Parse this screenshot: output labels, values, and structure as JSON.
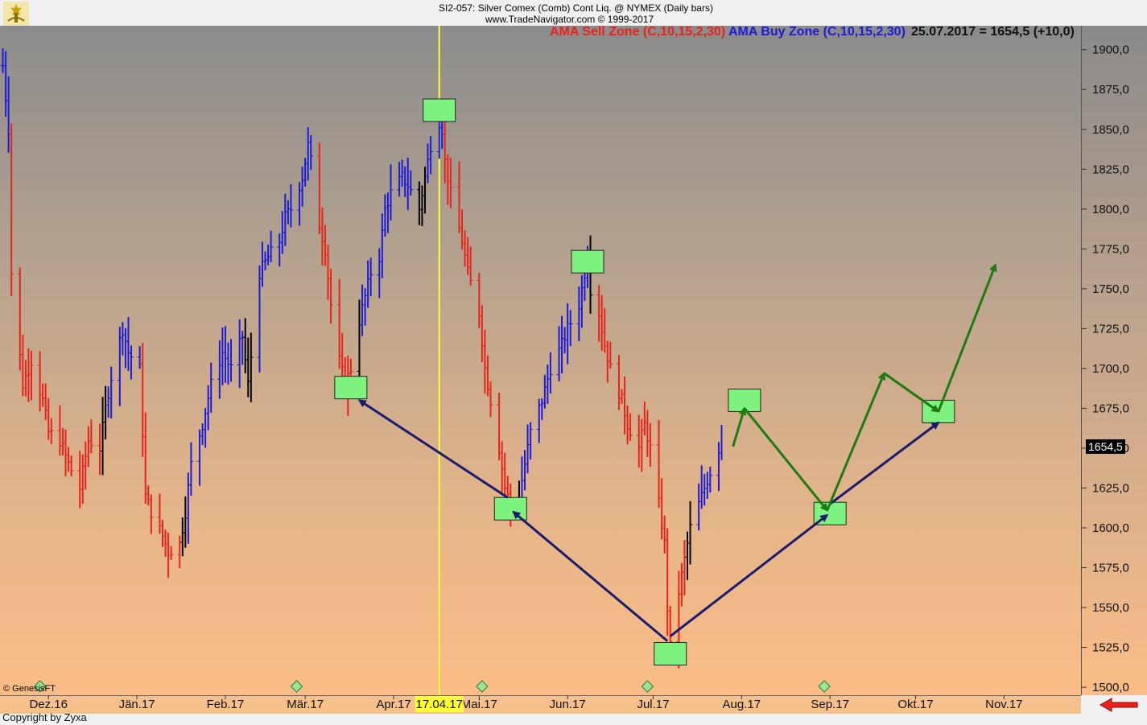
{
  "header": {
    "title": "SI2-057:  Silver Comex (Comb) Cont Liq. @ NYMEX  (Daily bars)",
    "source": "www.TradeNavigator.com © 1999-2017"
  },
  "legend": {
    "sell_zone": "AMA Sell Zone (C,10,15,2,30)",
    "buy_zone": "AMA Buy Zone (C,10,15,2,30)",
    "last_value": "25.07.2017 = 1654,5 (+10,0)"
  },
  "colors": {
    "sell": "#e8231a",
    "buy": "#1c1cd8",
    "neutral": "#000000",
    "box": "#7ef27e",
    "projection": "#1f7a12",
    "cycle": "#1a1a6e",
    "vline": "#ffff33"
  },
  "footer": {
    "copyright": "Copyright by Zyxa",
    "genesis": "© GenesisFT"
  },
  "last_price_tag": "1654,5",
  "highlight_date": "17.04.17",
  "chart_data": {
    "type": "bar",
    "title": "SI2-057:  Silver Comex (Comb) Cont Liq. @ NYMEX  (Daily bars)",
    "y_unit": "price",
    "ylim": [
      1495,
      1915
    ],
    "yticks": [
      "1900,0",
      "1875,0",
      "1850,0",
      "1825,0",
      "1800,0",
      "1775,0",
      "1750,0",
      "1725,0",
      "1700,0",
      "1675,0",
      "1650,0",
      "1625,0",
      "1600,0",
      "1575,0",
      "1550,0",
      "1525,0",
      "1500,0"
    ],
    "ytick_values": [
      1900,
      1875,
      1850,
      1825,
      1800,
      1775,
      1750,
      1725,
      1700,
      1675,
      1650,
      1625,
      1600,
      1575,
      1550,
      1525,
      1500
    ],
    "xticks": [
      "Dez.16",
      "Jän.17",
      "Feb.17",
      "Mär.17",
      "Apr.17",
      "Mai.17",
      "Jun.17",
      "Jul.17",
      "Aug.17",
      "Sep.17",
      "Okt.17",
      "Nov.17"
    ],
    "xtick_dates": [
      "2016-12-01",
      "2017-01-01",
      "2017-02-01",
      "2017-03-01",
      "2017-04-01",
      "2017-05-01",
      "2017-06-01",
      "2017-07-01",
      "2017-08-01",
      "2017-09-01",
      "2017-10-01",
      "2017-11-01"
    ],
    "x_range": [
      "2016-11-14",
      "2017-11-28"
    ],
    "grid": false,
    "series": [
      {
        "name": "AMA Sell Zone (C,10,15,2,30)",
        "color": "red"
      },
      {
        "name": "AMA Buy Zone (C,10,15,2,30)",
        "color": "blue"
      }
    ],
    "price_path": [
      [
        "2016-11-15",
        1890,
        "b"
      ],
      [
        "2016-11-17",
        1850,
        "b"
      ],
      [
        "2016-11-18",
        1760,
        "r"
      ],
      [
        "2016-11-22",
        1690,
        "r"
      ],
      [
        "2016-11-25",
        1705,
        "r"
      ],
      [
        "2016-11-29",
        1680,
        "r"
      ],
      [
        "2016-12-01",
        1660,
        "r"
      ],
      [
        "2016-12-05",
        1655,
        "r"
      ],
      [
        "2016-12-08",
        1640,
        "r"
      ],
      [
        "2016-12-12",
        1625,
        "r"
      ],
      [
        "2016-12-15",
        1655,
        "r"
      ],
      [
        "2016-12-19",
        1650,
        "r"
      ],
      [
        "2016-12-21",
        1675,
        "n"
      ],
      [
        "2016-12-23",
        1695,
        "b"
      ],
      [
        "2016-12-27",
        1725,
        "b"
      ],
      [
        "2016-12-29",
        1710,
        "b"
      ],
      [
        "2017-01-02",
        1700,
        "b"
      ],
      [
        "2017-01-04",
        1620,
        "r"
      ],
      [
        "2017-01-06",
        1610,
        "r"
      ],
      [
        "2017-01-10",
        1595,
        "r"
      ],
      [
        "2017-01-12",
        1585,
        "r"
      ],
      [
        "2017-01-16",
        1590,
        "r"
      ],
      [
        "2017-01-18",
        1610,
        "n"
      ],
      [
        "2017-01-20",
        1640,
        "b"
      ],
      [
        "2017-01-24",
        1665,
        "b"
      ],
      [
        "2017-01-27",
        1690,
        "b"
      ],
      [
        "2017-01-31",
        1710,
        "b"
      ],
      [
        "2017-02-03",
        1700,
        "b"
      ],
      [
        "2017-02-07",
        1720,
        "b"
      ],
      [
        "2017-02-09",
        1690,
        "n"
      ],
      [
        "2017-02-13",
        1760,
        "b"
      ],
      [
        "2017-02-16",
        1770,
        "b"
      ],
      [
        "2017-02-20",
        1780,
        "b"
      ],
      [
        "2017-02-22",
        1795,
        "b"
      ],
      [
        "2017-02-24",
        1800,
        "b"
      ],
      [
        "2017-02-28",
        1820,
        "b"
      ],
      [
        "2017-03-02",
        1840,
        "b"
      ],
      [
        "2017-03-03",
        1830,
        "b"
      ],
      [
        "2017-03-06",
        1790,
        "r"
      ],
      [
        "2017-03-08",
        1775,
        "r"
      ],
      [
        "2017-03-10",
        1740,
        "r"
      ],
      [
        "2017-03-13",
        1705,
        "r"
      ],
      [
        "2017-03-15",
        1690,
        "r"
      ],
      [
        "2017-03-17",
        1700,
        "r"
      ],
      [
        "2017-03-20",
        1730,
        "n"
      ],
      [
        "2017-03-22",
        1745,
        "b"
      ],
      [
        "2017-03-24",
        1760,
        "b"
      ],
      [
        "2017-03-27",
        1770,
        "b"
      ],
      [
        "2017-03-29",
        1800,
        "b"
      ],
      [
        "2017-03-31",
        1810,
        "b"
      ],
      [
        "2017-04-04",
        1820,
        "b"
      ],
      [
        "2017-04-06",
        1815,
        "b"
      ],
      [
        "2017-04-10",
        1800,
        "n"
      ],
      [
        "2017-04-12",
        1820,
        "n"
      ],
      [
        "2017-04-14",
        1840,
        "b"
      ],
      [
        "2017-04-17",
        1855,
        "b"
      ],
      [
        "2017-04-18",
        1850,
        "b"
      ],
      [
        "2017-04-19",
        1830,
        "r"
      ],
      [
        "2017-04-21",
        1810,
        "r"
      ],
      [
        "2017-04-25",
        1780,
        "r"
      ],
      [
        "2017-04-27",
        1760,
        "r"
      ],
      [
        "2017-05-01",
        1735,
        "r"
      ],
      [
        "2017-05-03",
        1700,
        "r"
      ],
      [
        "2017-05-05",
        1680,
        "r"
      ],
      [
        "2017-05-08",
        1650,
        "r"
      ],
      [
        "2017-05-10",
        1625,
        "r"
      ],
      [
        "2017-05-12",
        1615,
        "r"
      ],
      [
        "2017-05-15",
        1620,
        "n"
      ],
      [
        "2017-05-17",
        1640,
        "b"
      ],
      [
        "2017-05-19",
        1660,
        "b"
      ],
      [
        "2017-05-23",
        1680,
        "b"
      ],
      [
        "2017-05-26",
        1700,
        "b"
      ],
      [
        "2017-05-30",
        1715,
        "b"
      ],
      [
        "2017-06-01",
        1725,
        "b"
      ],
      [
        "2017-06-05",
        1740,
        "b"
      ],
      [
        "2017-06-07",
        1760,
        "b"
      ],
      [
        "2017-06-08",
        1770,
        "b"
      ],
      [
        "2017-06-09",
        1750,
        "n"
      ],
      [
        "2017-06-12",
        1735,
        "r"
      ],
      [
        "2017-06-14",
        1715,
        "r"
      ],
      [
        "2017-06-16",
        1700,
        "r"
      ],
      [
        "2017-06-20",
        1680,
        "r"
      ],
      [
        "2017-06-22",
        1665,
        "r"
      ],
      [
        "2017-06-26",
        1650,
        "r"
      ],
      [
        "2017-06-28",
        1665,
        "r"
      ],
      [
        "2017-06-30",
        1650,
        "r"
      ],
      [
        "2017-07-03",
        1615,
        "r"
      ],
      [
        "2017-07-05",
        1590,
        "r"
      ],
      [
        "2017-07-06",
        1550,
        "r"
      ],
      [
        "2017-07-07",
        1525,
        "r"
      ],
      [
        "2017-07-10",
        1560,
        "r"
      ],
      [
        "2017-07-12",
        1580,
        "r"
      ],
      [
        "2017-07-14",
        1600,
        "n"
      ],
      [
        "2017-07-17",
        1615,
        "b"
      ],
      [
        "2017-07-19",
        1625,
        "b"
      ],
      [
        "2017-07-21",
        1635,
        "b"
      ],
      [
        "2017-07-25",
        1654.5,
        "b"
      ]
    ],
    "boxes": [
      {
        "date": "2017-03-17",
        "price": 1688
      },
      {
        "date": "2017-04-17",
        "price": 1862
      },
      {
        "date": "2017-05-12",
        "price": 1612
      },
      {
        "date": "2017-06-08",
        "price": 1767
      },
      {
        "date": "2017-07-07",
        "price": 1521
      },
      {
        "date": "2017-08-02",
        "price": 1680
      },
      {
        "date": "2017-09-01",
        "price": 1609
      },
      {
        "date": "2017-10-09",
        "price": 1673
      }
    ],
    "cycle_arrows": [
      {
        "from": [
          "2017-05-11",
          1619
        ],
        "to": [
          "2017-03-20",
          1680
        ]
      },
      {
        "from": [
          "2017-07-06",
          1529
        ],
        "to": [
          "2017-05-13",
          1610
        ]
      },
      {
        "from": [
          "2017-07-07",
          1532
        ],
        "to": [
          "2017-08-31",
          1608
        ]
      },
      {
        "from": [
          "2017-09-01",
          1615
        ],
        "to": [
          "2017-10-09",
          1666
        ]
      }
    ],
    "projection_path": [
      [
        "2017-07-29",
        1651
      ],
      [
        "2017-08-02",
        1675
      ],
      [
        "2017-08-31",
        1611
      ],
      [
        "2017-09-20",
        1697
      ],
      [
        "2017-10-09",
        1673
      ],
      [
        "2017-10-29",
        1765
      ]
    ],
    "vline_date": "2017-04-17",
    "diamonds": [
      "2016-11-28",
      "2017-02-26",
      "2017-05-02",
      "2017-06-29",
      "2017-08-30"
    ]
  }
}
